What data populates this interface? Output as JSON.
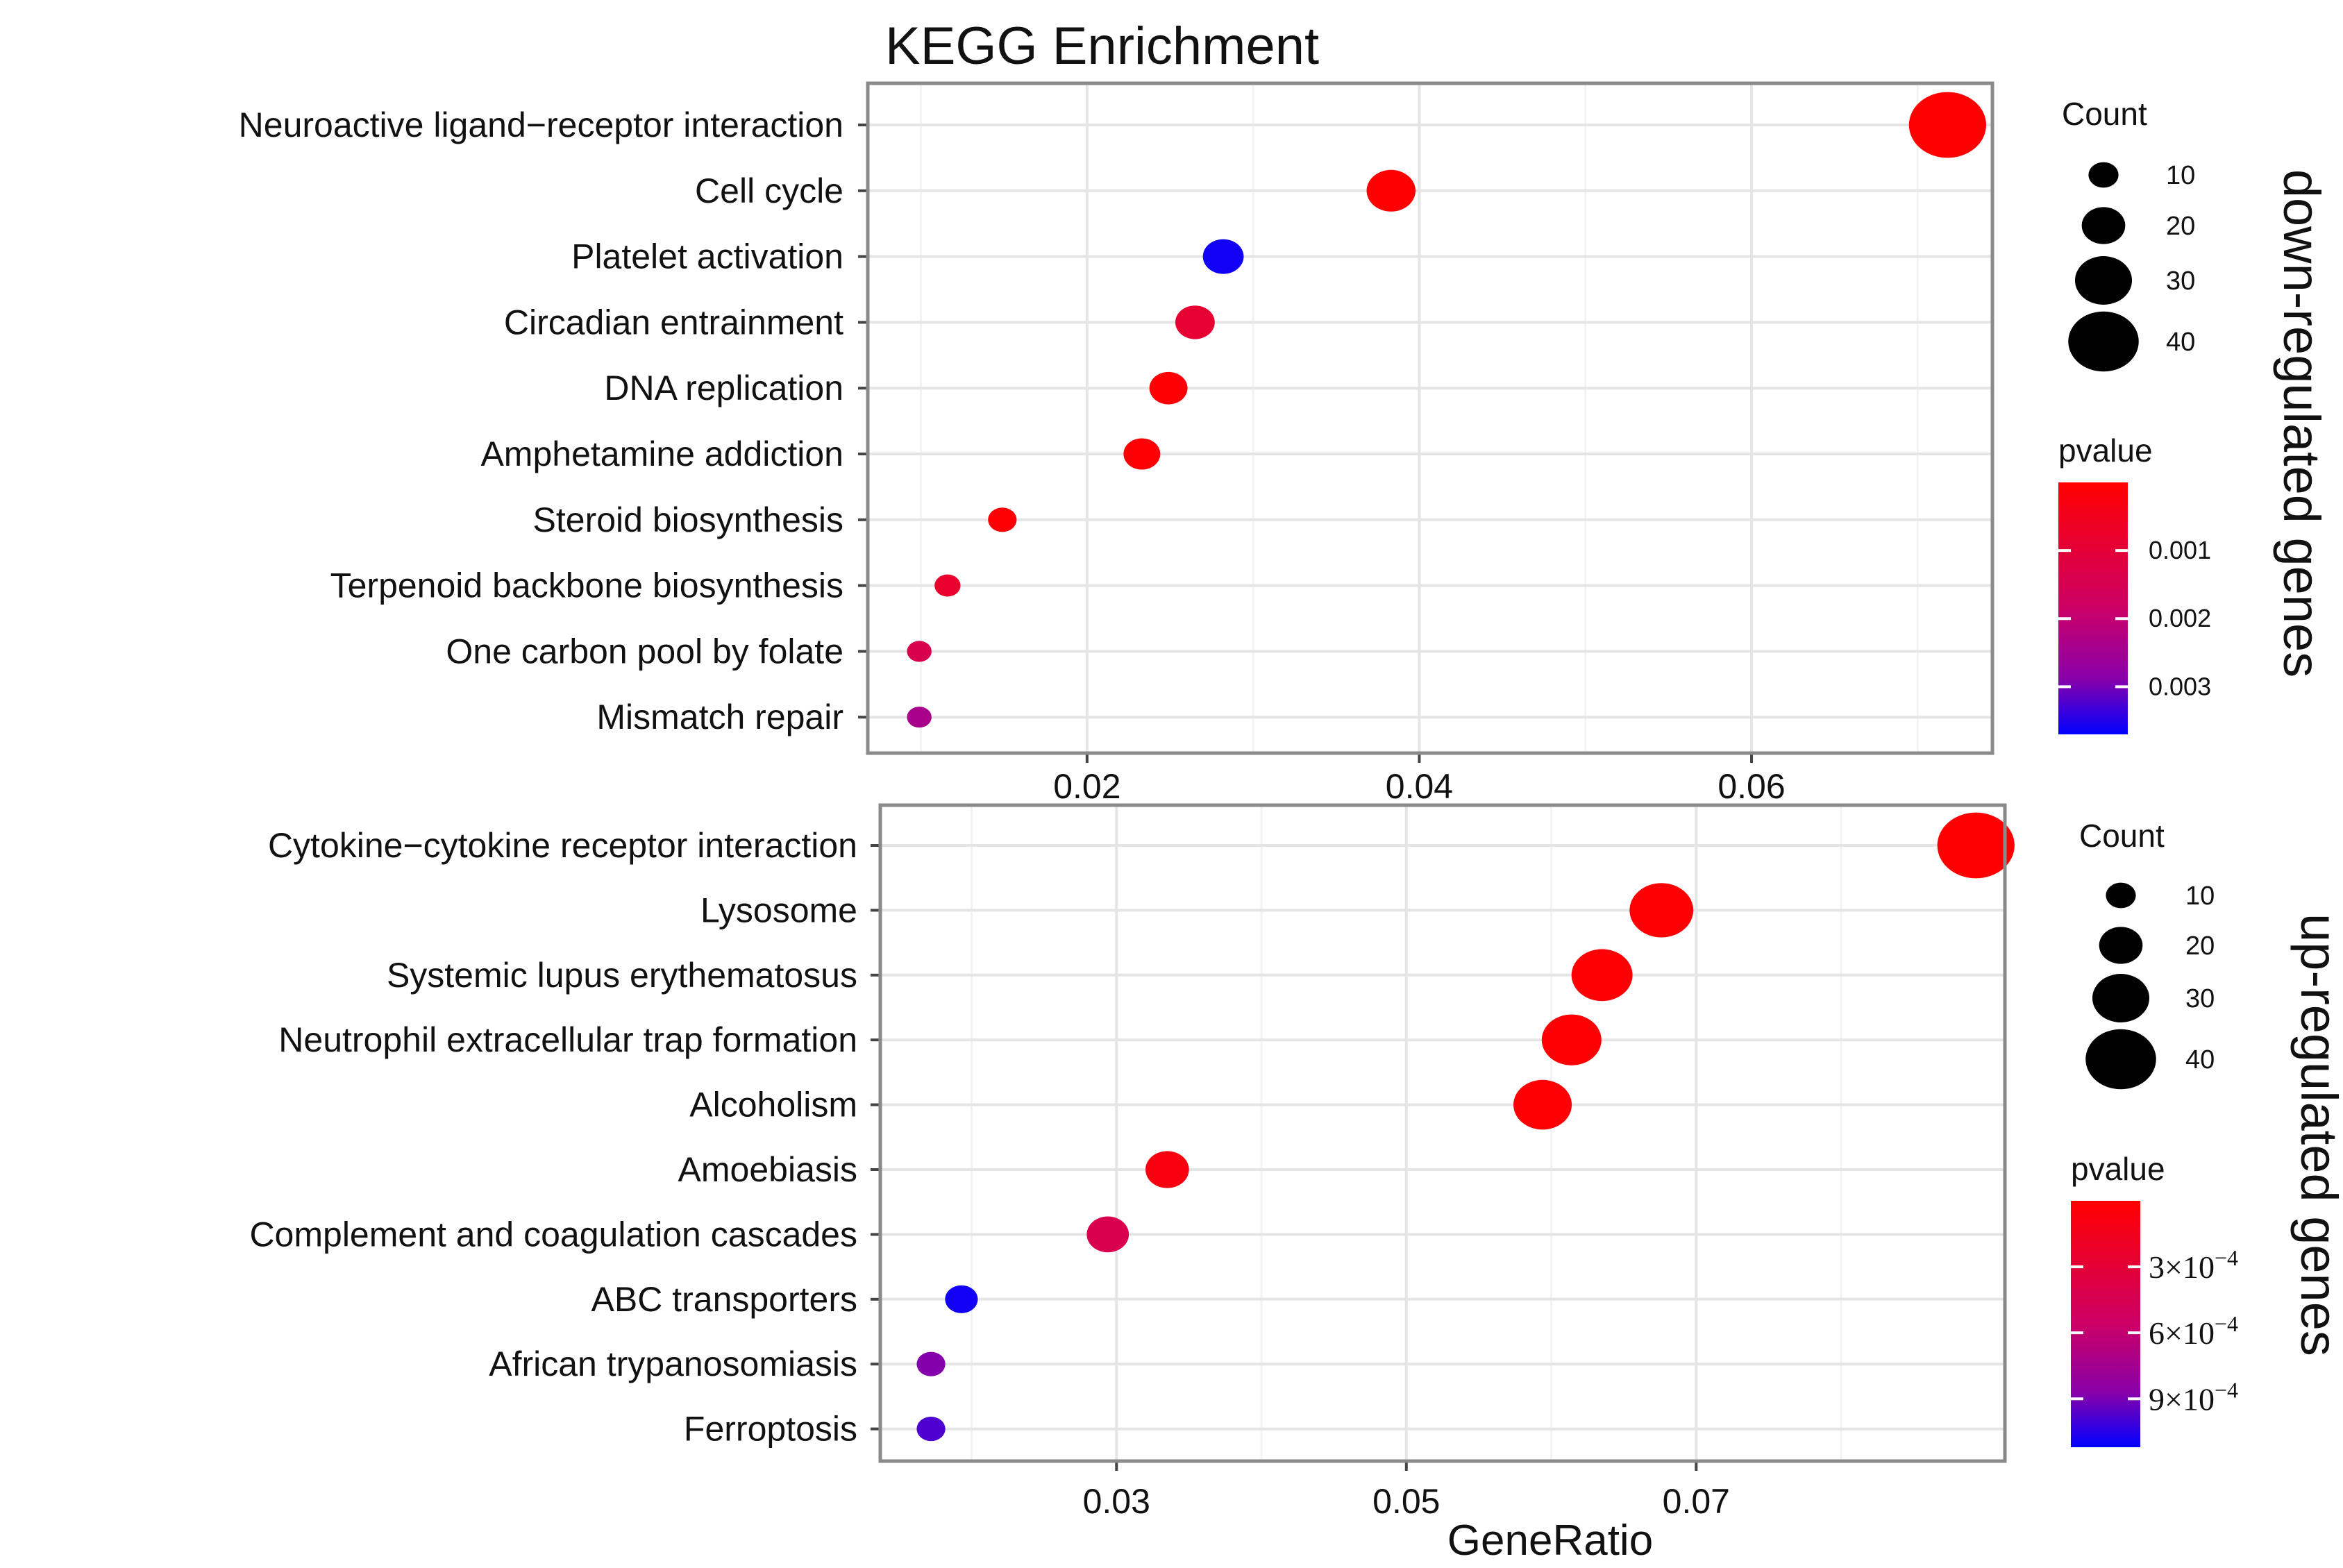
{
  "colors": {
    "high": "#ff0000",
    "low": "#0000ff",
    "mid": "#990099",
    "panel_border": "#8a8a8a",
    "grid_major": "#e5e5e5",
    "grid_minor": "#f3f3f3"
  },
  "chart_data": [
    {
      "type": "scatter",
      "title": "KEGG Enrichment",
      "side_label": "down-regulated genes",
      "xlabel": "",
      "xlim": [
        0.0068,
        0.0745
      ],
      "xticks": [
        0.02,
        0.04,
        0.06
      ],
      "xtick_labels": [
        "0.02",
        "0.04",
        "0.06"
      ],
      "size_legend": {
        "title": "Count",
        "values": [
          10,
          20,
          30,
          40
        ],
        "labels": [
          "10",
          "20",
          "30",
          "40"
        ]
      },
      "color_legend": {
        "title": "pvalue",
        "range": [
          0.0,
          0.0037
        ],
        "ticks": [
          0.001,
          0.002,
          0.003
        ],
        "labels": [
          "0.001",
          "0.002",
          "0.003"
        ]
      },
      "points": [
        {
          "term": "Neuroactive ligand−receptor interaction",
          "gene_ratio": 0.0718,
          "count": 45,
          "pvalue": 1e-05
        },
        {
          "term": "Cell cycle",
          "gene_ratio": 0.0383,
          "count": 24,
          "pvalue": 2e-05
        },
        {
          "term": "Platelet activation",
          "gene_ratio": 0.0282,
          "count": 18,
          "pvalue": 0.0036
        },
        {
          "term": "Circadian entrainment",
          "gene_ratio": 0.0265,
          "count": 17,
          "pvalue": 0.0009
        },
        {
          "term": "DNA replication",
          "gene_ratio": 0.0249,
          "count": 16,
          "pvalue": 0.0001
        },
        {
          "term": "Amphetamine addiction",
          "gene_ratio": 0.0233,
          "count": 15,
          "pvalue": 0.0001
        },
        {
          "term": "Steroid biosynthesis",
          "gene_ratio": 0.0149,
          "count": 9,
          "pvalue": 0.0001
        },
        {
          "term": "Terpenoid backbone biosynthesis",
          "gene_ratio": 0.0116,
          "count": 7,
          "pvalue": 0.0008
        },
        {
          "term": "One carbon pool by folate",
          "gene_ratio": 0.0099,
          "count": 6,
          "pvalue": 0.0014
        },
        {
          "term": "Mismatch repair",
          "gene_ratio": 0.0099,
          "count": 6,
          "pvalue": 0.0024
        }
      ]
    },
    {
      "type": "scatter",
      "title": "",
      "side_label": "up-regulated genes",
      "xlabel": "GeneRatio",
      "xlim": [
        0.0137,
        0.0913
      ],
      "xticks": [
        0.03,
        0.05,
        0.07
      ],
      "xtick_labels": [
        "0.03",
        "0.05",
        "0.07"
      ],
      "size_legend": {
        "title": "Count",
        "values": [
          10,
          20,
          30,
          40
        ],
        "labels": [
          "10",
          "20",
          "30",
          "40"
        ]
      },
      "color_legend": {
        "title": "pvalue",
        "range": [
          0.0,
          0.00112
        ],
        "ticks": [
          0.0003,
          0.0006,
          0.0009
        ],
        "labels": [
          "3×10",
          "6×10",
          "9×10"
        ],
        "label_exponent": "−4"
      },
      "points": [
        {
          "term": "Cytokine−cytokine receptor interaction",
          "gene_ratio": 0.0893,
          "count": 45,
          "pvalue": 1e-05
        },
        {
          "term": "Lysosome",
          "gene_ratio": 0.0676,
          "count": 35,
          "pvalue": 2e-05
        },
        {
          "term": "Systemic lupus erythematosus",
          "gene_ratio": 0.0635,
          "count": 33,
          "pvalue": 2e-05
        },
        {
          "term": "Neutrophil extracellular trap formation",
          "gene_ratio": 0.0614,
          "count": 32,
          "pvalue": 2e-05
        },
        {
          "term": "Alcoholism",
          "gene_ratio": 0.0594,
          "count": 31,
          "pvalue": 2e-05
        },
        {
          "term": "Amoebiasis",
          "gene_ratio": 0.0335,
          "count": 20,
          "pvalue": 8e-05
        },
        {
          "term": "Complement and coagulation cascades",
          "gene_ratio": 0.0294,
          "count": 19,
          "pvalue": 0.00042
        },
        {
          "term": "ABC transporters",
          "gene_ratio": 0.0193,
          "count": 12,
          "pvalue": 0.00109
        },
        {
          "term": "African trypanosomiasis",
          "gene_ratio": 0.0172,
          "count": 9,
          "pvalue": 0.00088
        },
        {
          "term": "Ferroptosis",
          "gene_ratio": 0.0172,
          "count": 9,
          "pvalue": 0.00098
        }
      ]
    }
  ]
}
